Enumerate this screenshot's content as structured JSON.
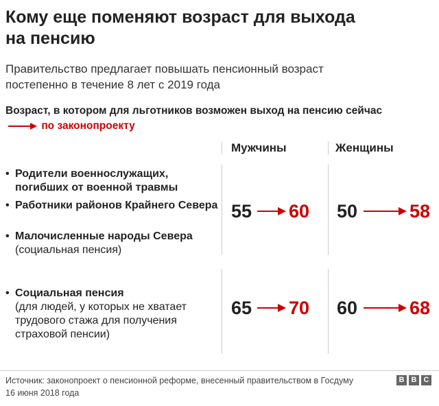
{
  "header": {
    "title": [
      "Кому еще поменяют возраст для выхода",
      "на пенсию"
    ],
    "subtitle": [
      "Правительство предлагает повышать пенсионный возраст",
      "постепенно в течение 8 лет с 2019 года"
    ]
  },
  "legend": {
    "current": "Возраст, в котором для льготников возможен выход на пенсию сейчас",
    "proposed": "по законопроекту"
  },
  "table": {
    "columns": [
      "Мужчины",
      "Женщины"
    ],
    "rows": [
      {
        "items": [
          {
            "name": "Родители военнослужащих, погибших от военной травмы"
          },
          {
            "name": "Работники районов Крайнего Севера"
          },
          {
            "name": "Малочисленные народы Севера",
            "note": "(социальная пенсия)"
          }
        ],
        "men": [
          55,
          60
        ],
        "women": [
          50,
          58
        ]
      },
      {
        "items": [
          {
            "name": "Социальная пенсия",
            "note": "(для людей, у которых не хватает трудового стажа для получения страховой пенсии)"
          }
        ],
        "men": [
          65,
          70
        ],
        "women": [
          60,
          68
        ]
      }
    ]
  },
  "footer": {
    "source": "Источник: законопроект о пенсионной реформе, внесенный правительством в Госдуму 16 июня 2018 года",
    "logo": [
      "B",
      "B",
      "C"
    ]
  }
}
